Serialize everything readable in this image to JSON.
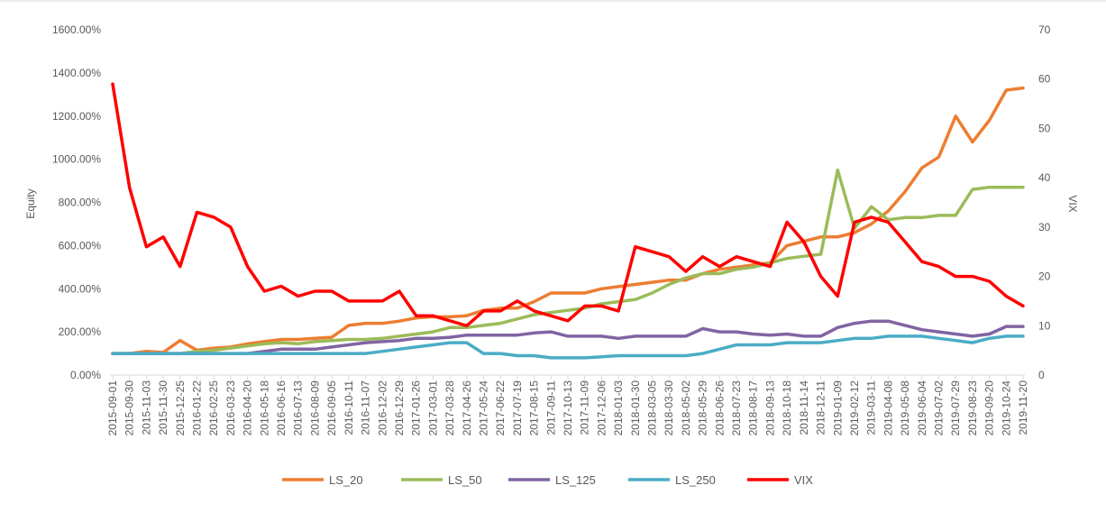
{
  "chart_data": {
    "type": "line",
    "xlabel": "",
    "ylabel": "Equity",
    "y2label": "VIX",
    "ylim": [
      0,
      1600
    ],
    "y2lim": [
      0,
      70
    ],
    "yticks": [
      "0.00%",
      "200.00%",
      "400.00%",
      "600.00%",
      "800.00%",
      "1000.00%",
      "1200.00%",
      "1400.00%",
      "1600.00%"
    ],
    "y2ticks": [
      "0",
      "10",
      "20",
      "30",
      "40",
      "50",
      "60",
      "70"
    ],
    "legend_position": "bottom",
    "grid": false,
    "x_dates": [
      "2015-09-01",
      "2015-09-30",
      "2015-11-03",
      "2015-11-30",
      "2015-12-25",
      "2016-01-22",
      "2016-02-25",
      "2016-03-23",
      "2016-04-20",
      "2016-05-18",
      "2016-06-16",
      "2016-07-13",
      "2016-08-09",
      "2016-09-05",
      "2016-10-11",
      "2016-11-07",
      "2016-12-02",
      "2016-12-29",
      "2017-01-26",
      "2017-03-01",
      "2017-03-28",
      "2017-04-26",
      "2017-05-24",
      "2017-06-22",
      "2017-07-19",
      "2017-08-15",
      "2017-09-11",
      "2017-10-13",
      "2017-11-09",
      "2017-12-06",
      "2018-01-03",
      "2018-01-30",
      "2018-03-05",
      "2018-03-30",
      "2018-05-02",
      "2018-05-29",
      "2018-06-26",
      "2018-07-23",
      "2018-08-17",
      "2018-09-13",
      "2018-10-18",
      "2018-11-14",
      "2018-12-11",
      "2019-01-09",
      "2019-02-12",
      "2019-03-11",
      "2019-04-08",
      "2019-05-08",
      "2019-06-04",
      "2019-07-02",
      "2019-07-29",
      "2019-08-23",
      "2019-09-20",
      "2019-10-24",
      "2019-11-20"
    ],
    "series": [
      {
        "name": "LS_20",
        "axis": "left",
        "color": "#ED7D31",
        "values": [
          100,
          100,
          110,
          105,
          160,
          115,
          125,
          130,
          145,
          155,
          165,
          165,
          170,
          175,
          230,
          240,
          240,
          250,
          265,
          270,
          270,
          275,
          300,
          310,
          310,
          340,
          380,
          380,
          380,
          400,
          410,
          420,
          430,
          440,
          440,
          470,
          490,
          500,
          510,
          520,
          600,
          620,
          640,
          640,
          660,
          700,
          760,
          850,
          960,
          1010,
          1200,
          1080,
          1180,
          1320,
          1330
        ]
      },
      {
        "name": "LS_50",
        "axis": "left",
        "color": "#9BBB59",
        "values": [
          100,
          100,
          100,
          100,
          100,
          110,
          115,
          125,
          135,
          145,
          150,
          145,
          155,
          160,
          165,
          165,
          170,
          180,
          190,
          200,
          220,
          220,
          230,
          240,
          260,
          280,
          290,
          300,
          310,
          330,
          340,
          350,
          380,
          420,
          450,
          470,
          470,
          490,
          500,
          520,
          540,
          550,
          560,
          950,
          680,
          780,
          720,
          730,
          730,
          740,
          740,
          860,
          870,
          870,
          870
        ]
      },
      {
        "name": "LS_125",
        "axis": "left",
        "color": "#8064A2",
        "values": [
          100,
          100,
          100,
          100,
          100,
          100,
          100,
          100,
          100,
          110,
          120,
          120,
          120,
          130,
          140,
          150,
          155,
          160,
          170,
          170,
          175,
          185,
          185,
          185,
          185,
          195,
          200,
          180,
          180,
          180,
          170,
          180,
          180,
          180,
          180,
          215,
          200,
          200,
          190,
          185,
          190,
          180,
          180,
          220,
          240,
          250,
          250,
          230,
          210,
          200,
          190,
          180,
          190,
          225,
          225
        ]
      },
      {
        "name": "LS_250",
        "axis": "left",
        "color": "#4BACC6",
        "values": [
          100,
          100,
          100,
          100,
          100,
          100,
          100,
          100,
          100,
          100,
          100,
          100,
          100,
          100,
          100,
          100,
          110,
          120,
          130,
          140,
          150,
          150,
          100,
          100,
          90,
          90,
          80,
          80,
          80,
          85,
          90,
          90,
          90,
          90,
          90,
          100,
          120,
          140,
          140,
          140,
          150,
          150,
          150,
          160,
          170,
          170,
          180,
          180,
          180,
          170,
          160,
          150,
          170,
          180,
          180
        ]
      },
      {
        "name": "VIX",
        "axis": "right",
        "color": "#FF0000",
        "values": [
          59,
          38,
          26,
          28,
          22,
          33,
          32,
          30,
          22,
          17,
          18,
          16,
          17,
          17,
          15,
          15,
          15,
          17,
          12,
          12,
          11,
          10,
          13,
          13,
          15,
          13,
          12,
          11,
          14,
          14,
          13,
          26,
          25,
          24,
          21,
          24,
          22,
          24,
          23,
          22,
          31,
          27,
          20,
          16,
          31,
          32,
          31,
          27,
          23,
          22,
          20,
          20,
          19,
          16,
          14
        ]
      }
    ]
  }
}
